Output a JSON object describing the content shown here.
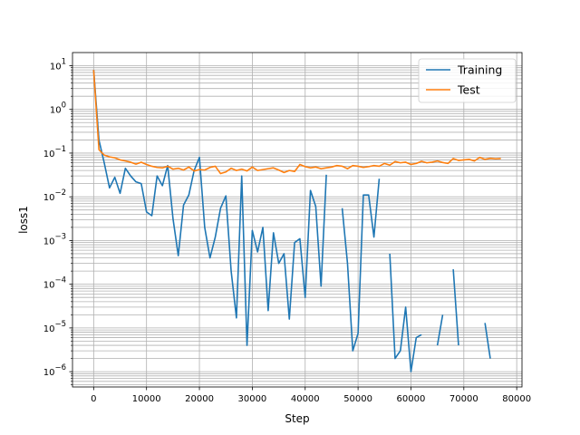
{
  "chart_data": {
    "type": "line",
    "xlabel": "Step",
    "ylabel": "loss1",
    "xlim": [
      -4000,
      81000
    ],
    "ylim_log10": [
      -6.35,
      1.3
    ],
    "y_scale": "log",
    "grid": "major-and-minor",
    "legend_position": "top-right",
    "x_ticks": [
      0,
      10000,
      20000,
      30000,
      40000,
      50000,
      60000,
      70000,
      80000
    ],
    "x_tick_labels": [
      "0",
      "10000",
      "20000",
      "30000",
      "40000",
      "50000",
      "60000",
      "70000",
      "80000"
    ],
    "y_tick_exponents": [
      1,
      0,
      -1,
      -2,
      -3,
      -4,
      -5,
      -6
    ],
    "y_tick_labels": [
      {
        "base": "10",
        "exp": "1"
      },
      {
        "base": "10",
        "exp": "0"
      },
      {
        "base": "10",
        "exp": "−1"
      },
      {
        "base": "10",
        "exp": "−2"
      },
      {
        "base": "10",
        "exp": "−3"
      },
      {
        "base": "10",
        "exp": "−4"
      },
      {
        "base": "10",
        "exp": "−5"
      },
      {
        "base": "10",
        "exp": "−6"
      }
    ],
    "series": [
      {
        "name": "Training",
        "color": "#1f77b4",
        "segments": [
          [
            [
              0,
              8.0
            ],
            [
              1000,
              0.2
            ],
            [
              2000,
              0.06
            ],
            [
              3000,
              0.016
            ],
            [
              4000,
              0.028
            ],
            [
              5000,
              0.012
            ],
            [
              6000,
              0.045
            ],
            [
              7000,
              0.03
            ],
            [
              8000,
              0.022
            ],
            [
              9000,
              0.02
            ],
            [
              10000,
              0.0045
            ],
            [
              11000,
              0.0037
            ],
            [
              12000,
              0.03
            ],
            [
              13000,
              0.018
            ],
            [
              14000,
              0.052
            ],
            [
              15000,
              0.0032
            ],
            [
              16000,
              0.00045
            ],
            [
              17000,
              0.0065
            ],
            [
              18000,
              0.011
            ],
            [
              19000,
              0.04
            ],
            [
              20000,
              0.08
            ],
            [
              21000,
              0.002
            ],
            [
              22000,
              0.0004
            ],
            [
              23000,
              0.0012
            ],
            [
              24000,
              0.0055
            ],
            [
              25000,
              0.0105
            ],
            [
              26000,
              0.0002
            ],
            [
              27000,
              1.7e-05
            ],
            [
              28000,
              0.03
            ],
            [
              29000,
              4e-06
            ],
            [
              30000,
              0.0017
            ],
            [
              31000,
              0.00055
            ],
            [
              32000,
              0.002
            ],
            [
              33000,
              2.5e-05
            ],
            [
              34000,
              0.0015
            ],
            [
              35000,
              0.0003
            ],
            [
              36000,
              0.0005
            ],
            [
              37000,
              1.6e-05
            ],
            [
              38000,
              0.0009
            ],
            [
              39000,
              0.0011
            ],
            [
              40000,
              5e-05
            ],
            [
              41000,
              0.014
            ],
            [
              42000,
              0.006
            ],
            [
              43000,
              9e-05
            ],
            [
              44000,
              0.032
            ]
          ],
          [
            [
              47000,
              0.0055
            ],
            [
              48000,
              0.0003
            ],
            [
              49000,
              3e-06
            ],
            [
              50000,
              7.5e-06
            ],
            [
              51000,
              0.011
            ],
            [
              52000,
              0.011
            ],
            [
              53000,
              0.0012
            ],
            [
              54000,
              0.026
            ]
          ],
          [
            [
              56000,
              0.0005
            ],
            [
              57000,
              2e-06
            ],
            [
              58000,
              3e-06
            ],
            [
              59000,
              3e-05
            ],
            [
              60000,
              1e-06
            ],
            [
              61000,
              6e-06
            ],
            [
              62000,
              7e-06
            ]
          ],
          [
            [
              65000,
              4e-06
            ],
            [
              66000,
              2e-05
            ]
          ],
          [
            [
              68000,
              0.00022
            ],
            [
              69000,
              4e-06
            ]
          ],
          [
            [
              74000,
              1.3e-05
            ],
            [
              75000,
              2e-06
            ]
          ]
        ]
      },
      {
        "name": "Test",
        "color": "#ff7f0e",
        "segments": [
          [
            [
              0,
              8.0
            ],
            [
              1000,
              0.12
            ],
            [
              2000,
              0.09
            ],
            [
              3000,
              0.082
            ],
            [
              4000,
              0.078
            ],
            [
              5000,
              0.07
            ],
            [
              6000,
              0.066
            ],
            [
              7000,
              0.062
            ],
            [
              8000,
              0.056
            ],
            [
              9000,
              0.062
            ],
            [
              10000,
              0.055
            ],
            [
              11000,
              0.05
            ],
            [
              12000,
              0.047
            ],
            [
              13000,
              0.046
            ],
            [
              14000,
              0.05
            ],
            [
              15000,
              0.043
            ],
            [
              16000,
              0.045
            ],
            [
              17000,
              0.041
            ],
            [
              18000,
              0.048
            ],
            [
              19000,
              0.039
            ],
            [
              20000,
              0.042
            ],
            [
              21000,
              0.041
            ],
            [
              22000,
              0.047
            ],
            [
              23000,
              0.05
            ],
            [
              24000,
              0.034
            ],
            [
              25000,
              0.037
            ],
            [
              26000,
              0.045
            ],
            [
              27000,
              0.04
            ],
            [
              28000,
              0.043
            ],
            [
              29000,
              0.039
            ],
            [
              30000,
              0.048
            ],
            [
              31000,
              0.04
            ],
            [
              32000,
              0.042
            ],
            [
              33000,
              0.044
            ],
            [
              34000,
              0.046
            ],
            [
              35000,
              0.041
            ],
            [
              36000,
              0.036
            ],
            [
              37000,
              0.04
            ],
            [
              38000,
              0.038
            ],
            [
              39000,
              0.055
            ],
            [
              40000,
              0.049
            ],
            [
              41000,
              0.046
            ],
            [
              42000,
              0.048
            ],
            [
              43000,
              0.044
            ],
            [
              44000,
              0.046
            ],
            [
              45000,
              0.048
            ],
            [
              46000,
              0.052
            ],
            [
              47000,
              0.05
            ],
            [
              48000,
              0.044
            ],
            [
              49000,
              0.052
            ],
            [
              50000,
              0.05
            ],
            [
              51000,
              0.047
            ],
            [
              52000,
              0.049
            ],
            [
              53000,
              0.052
            ],
            [
              54000,
              0.05
            ],
            [
              55000,
              0.058
            ],
            [
              56000,
              0.053
            ],
            [
              57000,
              0.064
            ],
            [
              58000,
              0.06
            ],
            [
              59000,
              0.062
            ],
            [
              60000,
              0.055
            ],
            [
              61000,
              0.058
            ],
            [
              62000,
              0.065
            ],
            [
              63000,
              0.06
            ],
            [
              64000,
              0.062
            ],
            [
              65000,
              0.066
            ],
            [
              66000,
              0.061
            ],
            [
              67000,
              0.058
            ],
            [
              68000,
              0.075
            ],
            [
              69000,
              0.068
            ],
            [
              70000,
              0.07
            ],
            [
              71000,
              0.072
            ],
            [
              72000,
              0.066
            ],
            [
              73000,
              0.08
            ],
            [
              74000,
              0.072
            ],
            [
              75000,
              0.076
            ],
            [
              76000,
              0.074
            ],
            [
              77000,
              0.075
            ]
          ]
        ]
      }
    ]
  }
}
